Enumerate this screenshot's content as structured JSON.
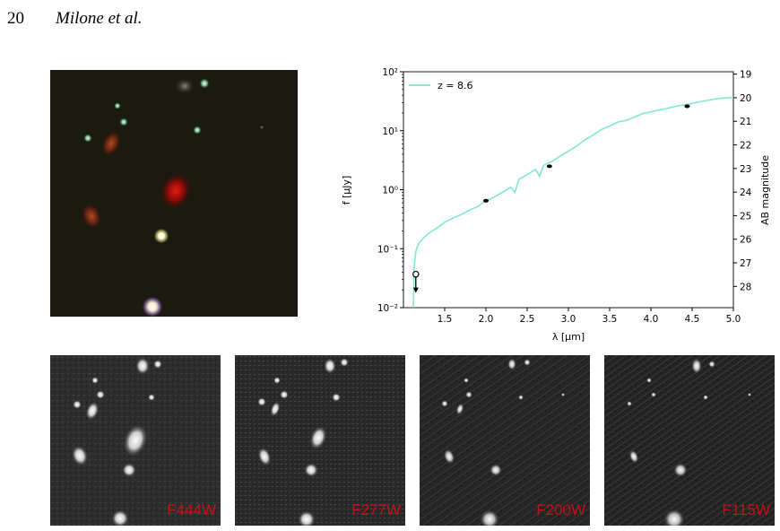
{
  "header": {
    "page_number": "20",
    "authors": "Milone et al."
  },
  "chart_data": {
    "type": "line",
    "xlabel": "λ [μm]",
    "ylabel": "f [μJy]",
    "ylabel_right": "AB magnitude",
    "xlim": [
      1.0,
      5.0
    ],
    "ylim": [
      0.01,
      100
    ],
    "yscale": "log",
    "x_ticks": [
      "1.5",
      "2.0",
      "2.5",
      "3.0",
      "3.5",
      "4.0",
      "4.5",
      "5.0"
    ],
    "y_ticks": [
      "10⁻²",
      "10⁻¹",
      "10⁰",
      "10¹",
      "10²"
    ],
    "right_ticks": [
      "19",
      "20",
      "21",
      "22",
      "23",
      "24",
      "25",
      "26",
      "27",
      "28"
    ],
    "legend": {
      "label": "z = 8.6",
      "position": "top-left",
      "color": "#7fe8cf"
    },
    "series": [
      {
        "name": "z = 8.6",
        "color": "#7fe8cf",
        "x": [
          1.12,
          1.13,
          1.15,
          1.18,
          1.22,
          1.3,
          1.4,
          1.5,
          1.6,
          1.7,
          1.8,
          1.9,
          2.0,
          2.1,
          2.2,
          2.3,
          2.35,
          2.4,
          2.5,
          2.6,
          2.65,
          2.7,
          2.8,
          2.9,
          3.0,
          3.1,
          3.2,
          3.3,
          3.4,
          3.5,
          3.6,
          3.7,
          3.8,
          3.9,
          4.0,
          4.1,
          4.2,
          4.3,
          4.4,
          4.5,
          4.6,
          4.7,
          4.8,
          4.9,
          5.0
        ],
        "y": [
          0.01,
          0.05,
          0.09,
          0.12,
          0.14,
          0.18,
          0.22,
          0.28,
          0.33,
          0.38,
          0.45,
          0.52,
          0.65,
          0.75,
          0.9,
          1.1,
          0.9,
          1.5,
          1.8,
          2.2,
          1.7,
          2.6,
          3.0,
          3.7,
          4.5,
          5.5,
          7.0,
          8.5,
          10.5,
          12.0,
          14.0,
          15.0,
          17.0,
          19.5,
          21.0,
          22.5,
          24.0,
          26.0,
          27.5,
          29.0,
          31.0,
          33.0,
          35.0,
          36.0,
          37.0
        ]
      }
    ],
    "photometry": [
      {
        "x": 2.0,
        "y": 0.65
      },
      {
        "x": 2.77,
        "y": 2.5
      },
      {
        "x": 4.44,
        "y": 26.0
      }
    ],
    "upper_limit": {
      "x": 1.15,
      "y": 0.037
    }
  },
  "thumbnails": [
    {
      "label": "F444W"
    },
    {
      "label": "F277W"
    },
    {
      "label": "F200W"
    },
    {
      "label": "F115W"
    }
  ]
}
